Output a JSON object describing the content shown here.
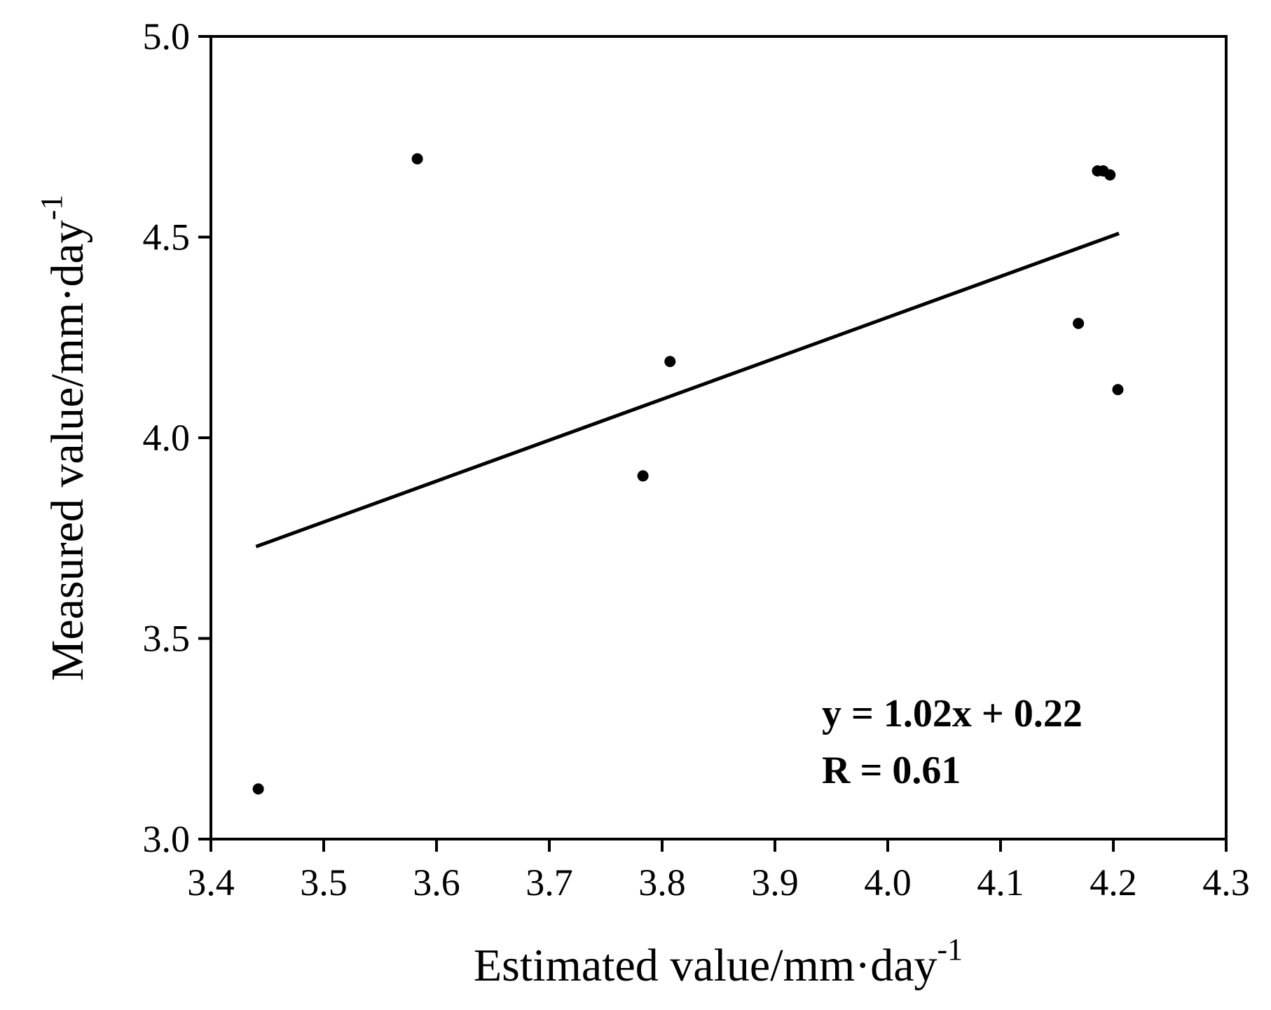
{
  "chart_data": {
    "type": "scatter",
    "title": "",
    "xlabel": "Estimated value/mm·day",
    "xlabel_superscript": "-1",
    "ylabel": "Measured value/mm·day",
    "ylabel_superscript": "-1",
    "xlim": [
      3.4,
      4.3
    ],
    "ylim": [
      3.0,
      5.0
    ],
    "x_ticks": [
      "3.4",
      "3.5",
      "3.6",
      "3.7",
      "3.8",
      "3.9",
      "4.0",
      "4.1",
      "4.2",
      "4.3"
    ],
    "y_ticks": [
      "3.0",
      "3.5",
      "4.0",
      "4.5",
      "5.0"
    ],
    "grid": false,
    "points": [
      {
        "x": 3.442,
        "y": 3.125
      },
      {
        "x": 3.583,
        "y": 4.695
      },
      {
        "x": 3.783,
        "y": 3.905
      },
      {
        "x": 3.807,
        "y": 4.19
      },
      {
        "x": 4.169,
        "y": 4.285
      },
      {
        "x": 4.186,
        "y": 4.665
      },
      {
        "x": 4.191,
        "y": 4.665
      },
      {
        "x": 4.197,
        "y": 4.655
      },
      {
        "x": 4.204,
        "y": 4.12
      }
    ],
    "fit_line": {
      "slope": 1.02,
      "intercept": 0.22,
      "x_start": 3.44,
      "x_end": 4.205
    },
    "annotations": [
      "y = 1.02x + 0.22",
      "R = 0.61"
    ],
    "colors": {
      "background": "#ffffff",
      "ink": "#000000"
    }
  }
}
